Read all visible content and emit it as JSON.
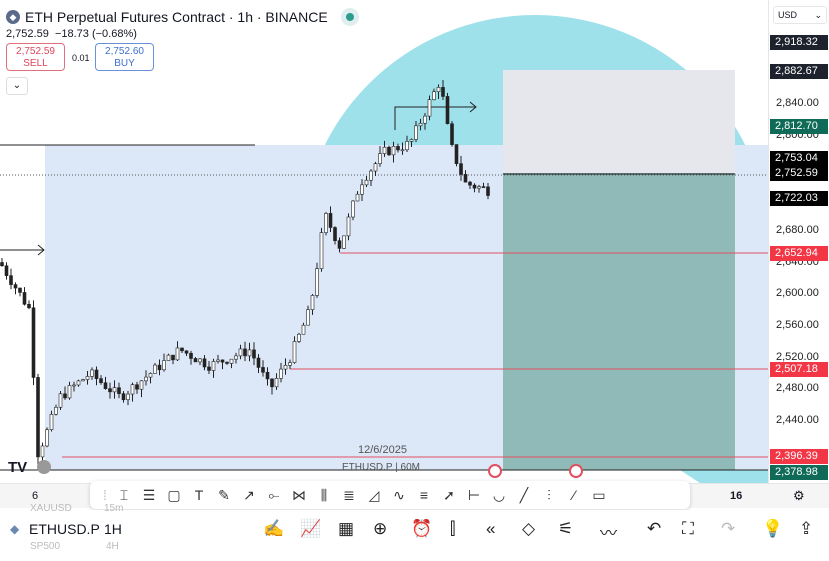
{
  "header": {
    "title": "ETH Perpetual Futures Contract · 1h · BINANCE",
    "price": "2,752.59",
    "change": "−18.73 (−0.68%)",
    "sell_price": "2,752.59",
    "sell_label": "SELL",
    "spread": "0.01",
    "buy_price": "2,752.60",
    "buy_label": "BUY"
  },
  "axis": {
    "currency": "USD",
    "ticks": [
      "2,840.00",
      "2,800.00",
      "2,680.00",
      "2,640.00",
      "2,600.00",
      "2,560.00",
      "2,520.00",
      "2,480.00",
      "2,440.00"
    ],
    "labels": [
      {
        "text": "2,918.32",
        "color": "#1e222d"
      },
      {
        "text": "2,882.67",
        "color": "#1e222d"
      },
      {
        "text": "2,812.70",
        "color": "#0f6b57"
      },
      {
        "text": "2,753.04",
        "color": "#000000"
      },
      {
        "text": "2,752.59",
        "color": "#000000"
      },
      {
        "text": "2,722.03",
        "color": "#000000"
      },
      {
        "text": "2,652.94",
        "color": "#f23645"
      },
      {
        "text": "2,507.18",
        "color": "#f23645"
      },
      {
        "text": "2,396.39",
        "color": "#f23645"
      },
      {
        "text": "2,378.98",
        "color": "#0f6b57"
      }
    ]
  },
  "chart": {
    "date_label": "12/6/2025",
    "watermark": "ETHUSD.P | 60M"
  },
  "timebar": {
    "left": "6",
    "right": "16"
  },
  "bottom": {
    "symbol": "ETHUSD.P",
    "interval": "1H",
    "ghost_symbol_1": "XAUUSD",
    "ghost_interval_1": "15m",
    "ghost_symbol_2": "SP500",
    "ghost_interval_2": "4H"
  }
}
